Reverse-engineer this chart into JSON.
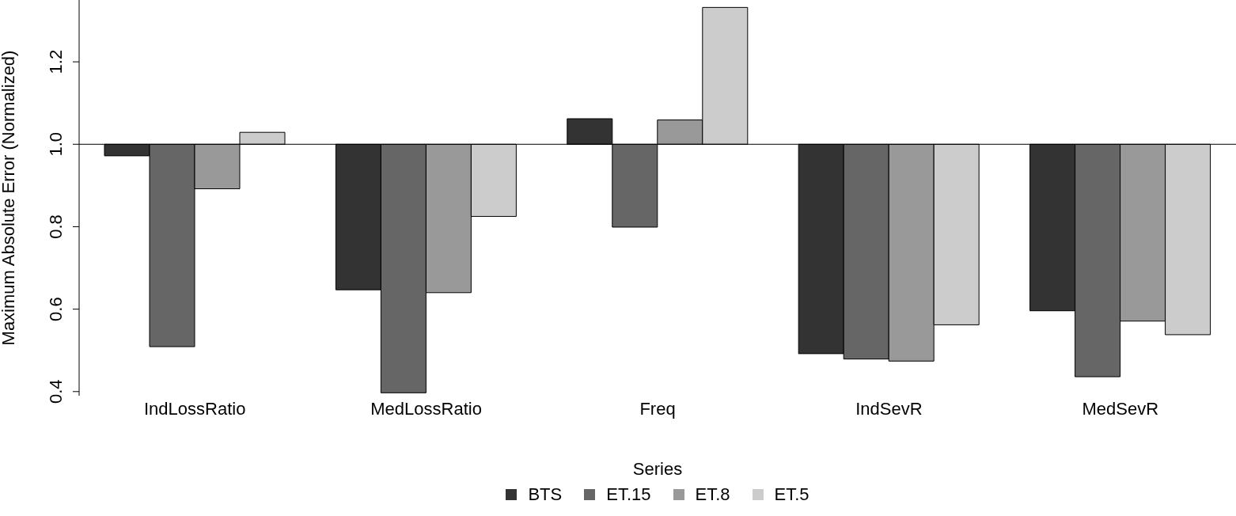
{
  "chart_data": {
    "type": "bar",
    "ylabel": "Maximum Absolute Error (Normalized)",
    "legend_title": "Series",
    "categories": [
      "IndLossRatio",
      "MedLossRatio",
      "Freq",
      "IndSevR",
      "MedSevR"
    ],
    "series": [
      {
        "name": "BTS",
        "color": "#333333",
        "base": [
          1,
          1,
          1,
          1,
          1
        ],
        "values": [
          -0.028,
          -0.353,
          0.062,
          -0.508,
          -0.404
        ]
      },
      {
        "name": "ET.15",
        "color": "#666666",
        "base": [
          1,
          1,
          1,
          1,
          1
        ],
        "values": [
          -0.491,
          -0.603,
          -0.201,
          -0.521,
          -0.564
        ]
      },
      {
        "name": "ET.8",
        "color": "#999999",
        "base": [
          1,
          1,
          1,
          1,
          1
        ],
        "values": [
          -0.108,
          -0.36,
          0.059,
          -0.526,
          -0.429
        ]
      },
      {
        "name": "ET.5",
        "color": "#cccccc",
        "base": [
          1,
          1,
          1,
          1,
          1
        ],
        "values": [
          0.029,
          -0.175,
          0.332,
          -0.438,
          -0.462
        ]
      }
    ],
    "ylim": [
      0.39,
      1.35
    ],
    "yticks": [
      0.4,
      0.6,
      0.8,
      {
        "value": 1,
        "label": "1.0"
      },
      1.2
    ],
    "ref_lines": [
      {
        "axis": "y",
        "value": 1
      }
    ],
    "grid": false,
    "legend": "bottom"
  }
}
